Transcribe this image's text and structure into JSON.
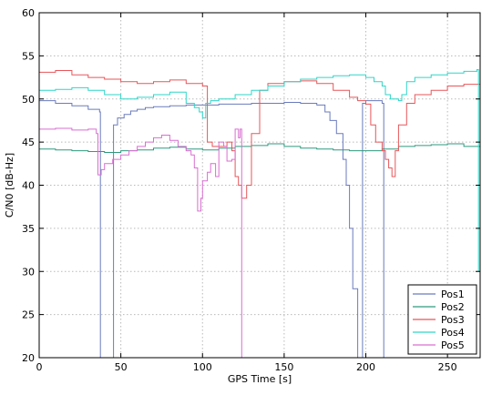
{
  "chart_data": {
    "type": "line",
    "title": "",
    "xlabel": "GPS Time [s]",
    "ylabel": "C/N0 [dB-Hz]",
    "xlim": [
      0,
      270
    ],
    "ylim": [
      20,
      60
    ],
    "xticks": [
      "0",
      "50",
      "100",
      "150",
      "200",
      "250"
    ],
    "yticks": [
      "20",
      "25",
      "30",
      "35",
      "40",
      "45",
      "50",
      "55",
      "60"
    ],
    "grid": true,
    "grid_style": "dotted",
    "legend_position": "bottom-right",
    "series": [
      {
        "name": "Pos1",
        "color": "#6a7bbd",
        "x": [
          0,
          10,
          20,
          30,
          37,
          37.5,
          44,
          45.5,
          48,
          52,
          56,
          60,
          65,
          70,
          80,
          90,
          100,
          110,
          120,
          130,
          140,
          150,
          160,
          170,
          175,
          178,
          182,
          186,
          188,
          190,
          192,
          195,
          197,
          198,
          200,
          205,
          210,
          211,
          212,
          270
        ],
        "y": [
          49.8,
          49.5,
          49.2,
          48.8,
          48.5,
          20,
          20,
          47,
          47.8,
          48.2,
          48.6,
          48.8,
          49,
          49.1,
          49.2,
          49.3,
          49.3,
          49.4,
          49.4,
          49.5,
          49.5,
          49.6,
          49.5,
          49.3,
          48.5,
          47.5,
          46,
          43,
          40,
          35,
          28,
          20,
          20,
          49.5,
          49.8,
          49.8,
          49.5,
          20,
          20,
          20
        ]
      },
      {
        "name": "Pos2",
        "color": "#2e9a7e",
        "x": [
          0,
          10,
          20,
          30,
          40,
          50,
          60,
          70,
          80,
          90,
          100,
          110,
          120,
          130,
          140,
          150,
          160,
          170,
          180,
          190,
          200,
          210,
          220,
          230,
          240,
          250,
          260,
          270
        ],
        "y": [
          44.2,
          44.1,
          44,
          43.9,
          43.8,
          44,
          44.1,
          44.3,
          44.4,
          44.2,
          44.1,
          44.3,
          44.5,
          44.6,
          44.8,
          44.5,
          44.3,
          44.2,
          44.1,
          44,
          44,
          44.2,
          44.5,
          44.6,
          44.7,
          44.8,
          44.5,
          44.3
        ]
      },
      {
        "name": "Pos3",
        "color": "#e8565a",
        "x": [
          0,
          10,
          20,
          30,
          40,
          50,
          60,
          70,
          80,
          90,
          100,
          103,
          106,
          110,
          115,
          118,
          120,
          122,
          124,
          127,
          130,
          135,
          140,
          150,
          160,
          170,
          180,
          190,
          195,
          200,
          203,
          206,
          210,
          212,
          214,
          216,
          218,
          220,
          225,
          230,
          240,
          250,
          260,
          270
        ],
        "y": [
          53.1,
          53.3,
          52.8,
          52.5,
          52.3,
          52,
          51.8,
          52,
          52.2,
          51.8,
          51.5,
          45,
          44.5,
          44.5,
          45,
          44,
          41,
          40,
          38.5,
          40,
          46,
          51,
          51.8,
          52,
          52.1,
          51.8,
          51,
          50.2,
          49.8,
          49.4,
          47,
          45,
          44,
          43,
          42,
          41,
          44,
          47,
          49.5,
          50.5,
          51,
          51.5,
          51.7,
          51.5
        ]
      },
      {
        "name": "Pos4",
        "color": "#2ed6c9",
        "x": [
          0,
          10,
          20,
          30,
          40,
          50,
          60,
          70,
          80,
          90,
          95,
          98,
          100,
          102,
          105,
          110,
          120,
          130,
          140,
          150,
          160,
          170,
          180,
          190,
          200,
          205,
          210,
          212,
          215,
          220,
          222,
          225,
          230,
          240,
          250,
          260,
          268,
          269,
          270
        ],
        "y": [
          51,
          51.1,
          51.3,
          51,
          50.5,
          50,
          50.2,
          50.5,
          50.8,
          49.5,
          49,
          48.5,
          47.8,
          49.5,
          49.8,
          50,
          50.5,
          51,
          51.5,
          52,
          52.3,
          52.5,
          52.7,
          52.8,
          52.5,
          52,
          51.5,
          50.5,
          50,
          49.8,
          50.5,
          52,
          52.5,
          52.8,
          53,
          53.2,
          53.4,
          30,
          28
        ]
      },
      {
        "name": "Pos5",
        "color": "#d96fd1",
        "x": [
          0,
          10,
          20,
          30,
          35,
          36,
          38,
          40,
          45,
          50,
          55,
          60,
          65,
          70,
          75,
          80,
          85,
          90,
          93,
          95,
          97,
          99,
          100,
          103,
          105,
          108,
          110,
          113,
          115,
          118,
          120,
          122,
          123,
          124,
          125
        ],
        "y": [
          46.5,
          46.6,
          46.4,
          46.5,
          46,
          41.2,
          41.8,
          42.5,
          43,
          43.5,
          44,
          44.5,
          45,
          45.5,
          45.8,
          45.2,
          44.5,
          44,
          43.5,
          42,
          37,
          38.5,
          40.5,
          41.5,
          42.5,
          41,
          45,
          44.5,
          42.8,
          43,
          46.5,
          45.5,
          46.5,
          20,
          20
        ]
      }
    ]
  }
}
